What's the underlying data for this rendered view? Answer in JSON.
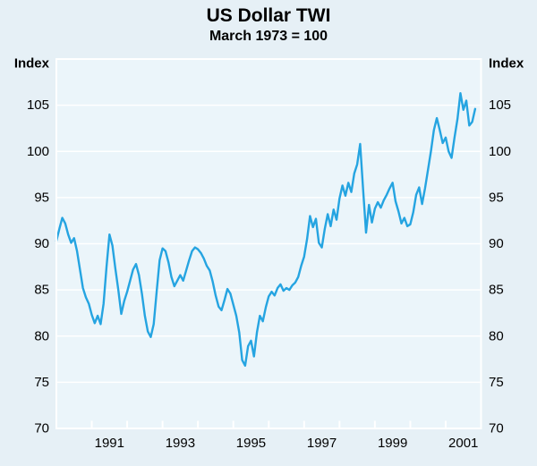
{
  "chart_data": {
    "type": "line",
    "title": "US Dollar TWI",
    "subtitle": "March 1973 = 100",
    "ylabel_left": "Index",
    "ylabel_right": "Index",
    "ylim": [
      70,
      110
    ],
    "yticks": [
      70,
      75,
      80,
      85,
      90,
      95,
      100,
      105
    ],
    "ytick_labels": [
      "70",
      "75",
      "80",
      "85",
      "90",
      "95",
      "100",
      "105"
    ],
    "xlim": [
      1990,
      2002
    ],
    "xticks": [
      1991,
      1992,
      1993,
      1994,
      1995,
      1996,
      1997,
      1998,
      1999,
      2000,
      2001
    ],
    "xtick_label_years": [
      "1991",
      "1993",
      "1995",
      "1997",
      "1999",
      "2001"
    ],
    "grid": "horizontal white gridlines, ticks inside bottom axis",
    "legend": "none",
    "series": [
      {
        "name": "US Dollar TWI",
        "unit": "index, March 1973 = 100",
        "frequency": "monthly",
        "start": "1990-01",
        "end": "2001-11",
        "values": [
          90.3,
          91.6,
          92.8,
          92.2,
          91.0,
          90.1,
          90.6,
          89.2,
          87.2,
          85.2,
          84.2,
          83.5,
          82.3,
          81.4,
          82.2,
          81.3,
          83.5,
          87.5,
          91.0,
          89.8,
          87.3,
          85.0,
          82.4,
          83.8,
          84.8,
          86.0,
          87.2,
          87.8,
          86.6,
          84.6,
          82.2,
          80.5,
          79.9,
          81.3,
          84.8,
          88.2,
          89.5,
          89.2,
          88.0,
          86.4,
          85.4,
          86.0,
          86.6,
          86.0,
          87.1,
          88.2,
          89.2,
          89.6,
          89.4,
          89.0,
          88.4,
          87.6,
          87.1,
          85.9,
          84.4,
          83.2,
          82.8,
          83.9,
          85.1,
          84.6,
          83.4,
          82.2,
          80.4,
          77.4,
          76.8,
          78.9,
          79.5,
          77.8,
          80.4,
          82.2,
          81.6,
          83.1,
          84.3,
          84.8,
          84.4,
          85.2,
          85.6,
          84.9,
          85.2,
          85.0,
          85.5,
          85.8,
          86.4,
          87.6,
          88.6,
          90.5,
          93.0,
          91.8,
          92.7,
          90.1,
          89.6,
          91.6,
          93.2,
          91.9,
          93.7,
          92.6,
          94.9,
          96.3,
          95.2,
          96.6,
          95.6,
          97.6,
          98.6,
          100.8,
          95.9,
          91.2,
          94.2,
          92.3,
          93.8,
          94.5,
          93.9,
          94.7,
          95.3,
          96.0,
          96.6,
          94.6,
          93.5,
          92.2,
          92.8,
          91.9,
          92.1,
          93.4,
          95.3,
          96.1,
          94.3,
          96.0,
          98.0,
          100.0,
          102.3,
          103.6,
          102.3,
          100.9,
          101.5,
          100.0,
          99.3,
          101.5,
          103.5,
          106.3,
          104.5,
          105.5,
          102.8,
          103.2,
          104.6
        ]
      }
    ],
    "colors": {
      "line": "#25A4E1",
      "background": "#e6f0f6",
      "plot_background": "#ebf5fa",
      "gridline": "#ffffff",
      "frame": "#ffffff",
      "text": "#000000"
    }
  }
}
